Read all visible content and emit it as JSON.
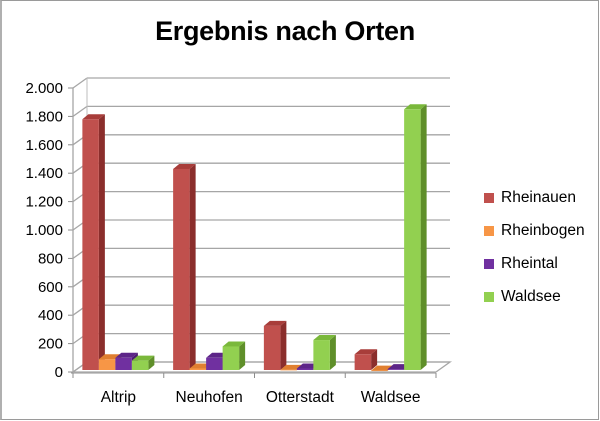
{
  "chart_data": {
    "type": "bar",
    "subtype": "3d-clustered-column",
    "title": "Ergebnis nach Orten",
    "xlabel": "",
    "ylabel": "",
    "categories": [
      "Altrip",
      "Neuhofen",
      "Otterstadt",
      "Waldsee"
    ],
    "series": [
      {
        "name": "Rheinauen",
        "color": "#c0504d",
        "side": "#8b2e2c",
        "top": "#a83d3a",
        "values": [
          1780,
          1430,
          325,
          125
        ]
      },
      {
        "name": "Rheinbogen",
        "color": "#f79646",
        "side": "#c46a22",
        "top": "#e07f30",
        "values": [
          90,
          25,
          15,
          10
        ]
      },
      {
        "name": "Rheintal",
        "color": "#7030a0",
        "side": "#4b1a72",
        "top": "#5d2588",
        "values": [
          100,
          100,
          25,
          20
        ]
      },
      {
        "name": "Waldsee",
        "color": "#92d050",
        "side": "#5f8f2a",
        "top": "#7ab83b",
        "values": [
          80,
          180,
          225,
          1850
        ]
      }
    ],
    "ylim": [
      0,
      2000
    ],
    "yticks": [
      0,
      200,
      400,
      600,
      800,
      1000,
      1200,
      1400,
      1600,
      1800,
      2000
    ],
    "ytick_labels": [
      "0",
      "200",
      "400",
      "600",
      "800",
      "1.000",
      "1.200",
      "1.400",
      "1.600",
      "1.800",
      "2.000"
    ],
    "grid": true,
    "legend_position": "right"
  },
  "legend": {
    "items": [
      {
        "label": "Rheinauen",
        "color": "#c0504d"
      },
      {
        "label": "Rheinbogen",
        "color": "#f79646"
      },
      {
        "label": "Rheintal",
        "color": "#7030a0"
      },
      {
        "label": "Waldsee",
        "color": "#92d050"
      }
    ]
  }
}
